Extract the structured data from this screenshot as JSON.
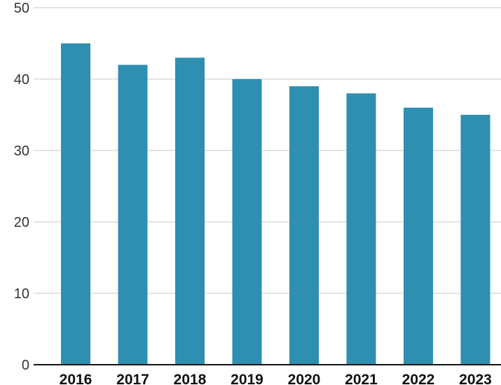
{
  "chart_data": {
    "type": "bar",
    "categories": [
      "2016",
      "2017",
      "2018",
      "2019",
      "2020",
      "2021",
      "2022",
      "2023"
    ],
    "values": [
      45,
      42,
      43,
      40,
      39,
      38,
      36,
      35
    ],
    "title": "",
    "xlabel": "",
    "ylabel": "",
    "ylim": [
      0,
      50
    ],
    "yticks": [
      "0",
      "10",
      "20",
      "30",
      "40",
      "50"
    ],
    "grid": true,
    "bar_color": "#2e8fb1",
    "axis_color": "#111111",
    "grid_color": "#c8c8c8"
  }
}
